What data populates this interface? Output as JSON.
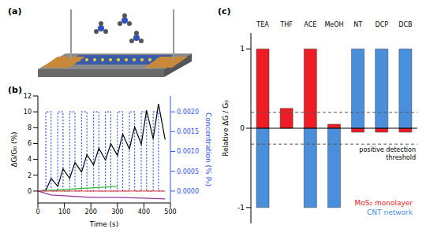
{
  "diagram": {
    "title": "(a)"
  },
  "chart_data": [
    {
      "type": "line",
      "title": "(b)",
      "x_label": "Time (s)",
      "y_label": "ΔG/G₀ (%)",
      "y2_label": "Concentration (% P₀)",
      "xlim": [
        0,
        500
      ],
      "xticks": [
        0,
        100,
        200,
        300,
        400,
        500
      ],
      "ylim": [
        -1.5,
        12
      ],
      "yticks": [
        0,
        2,
        4,
        6,
        8,
        10,
        12
      ],
      "y2lim": [
        -0.0003,
        0.0024
      ],
      "y2ticks": [
        {
          "value": 0,
          "label": "0.0000"
        },
        {
          "value": 0.0005,
          "label": "0.0005"
        },
        {
          "value": 0.001,
          "label": "0.0010"
        },
        {
          "value": 0.0015,
          "label": "0.0015"
        },
        {
          "value": 0.002,
          "label": "0.0020"
        }
      ],
      "series": [
        {
          "color": "#3355ee",
          "axis": "y2",
          "type": "step",
          "line_style": "dotted",
          "x": [
            0,
            30,
            50,
            75,
            95,
            120,
            140,
            165,
            185,
            210,
            230,
            255,
            275,
            300,
            320,
            345,
            365,
            390,
            410,
            435,
            455,
            480
          ],
          "values": [
            0,
            0.002,
            0,
            0.002,
            0,
            0.002,
            0,
            0.002,
            0,
            0.002,
            0,
            0.002,
            0,
            0.002,
            0,
            0.002,
            0,
            0.002,
            0,
            0.002,
            0,
            0
          ]
        },
        {
          "color": "#000000",
          "x": [
            0,
            30,
            50,
            75,
            95,
            120,
            140,
            165,
            185,
            210,
            230,
            255,
            275,
            300,
            320,
            345,
            365,
            390,
            410,
            435,
            455,
            480
          ],
          "values": [
            0,
            0.1,
            1.6,
            0.6,
            2.8,
            1.6,
            3.6,
            2.4,
            4.6,
            3.3,
            5.4,
            3.9,
            6.0,
            4.5,
            7.2,
            5.3,
            8.1,
            5.9,
            10.2,
            6.6,
            11.0,
            6.5
          ]
        },
        {
          "color": "#33bb33",
          "x": [
            0,
            100,
            200,
            300
          ],
          "values": [
            0,
            0.2,
            0.4,
            0.6
          ]
        },
        {
          "color": "#e05050",
          "x": [
            0,
            480
          ],
          "values": [
            0,
            0
          ]
        },
        {
          "color": "#993399",
          "x": [
            0,
            50,
            100,
            200,
            300,
            400,
            480
          ],
          "values": [
            0,
            -0.5,
            -0.6,
            -0.8,
            -0.8,
            -0.9,
            -1.0
          ]
        }
      ]
    },
    {
      "type": "bar",
      "title": "(c)",
      "y_label": "Relative ΔG / G₀",
      "categories": [
        "TEA",
        "THF",
        "ACE",
        "MeOH",
        "NT",
        "DCP",
        "DCB"
      ],
      "ylim": [
        -1.2,
        1.2
      ],
      "yticks": [
        -1,
        0,
        1
      ],
      "stacked": true,
      "legend": "lower right",
      "thresholds": [
        0.2,
        -0.2
      ],
      "annotation": [
        "positive detection",
        "threshold"
      ],
      "series": [
        {
          "name": "MoS₂ monolayer",
          "color": "#ee1c25",
          "values": [
            1,
            0.25,
            1,
            0.05,
            -0.05,
            -0.05,
            -0.05
          ]
        },
        {
          "name": "CNT network",
          "color": "#4a8fdc",
          "values": [
            -1,
            0,
            -1,
            -1,
            1,
            1,
            1
          ]
        }
      ]
    }
  ]
}
